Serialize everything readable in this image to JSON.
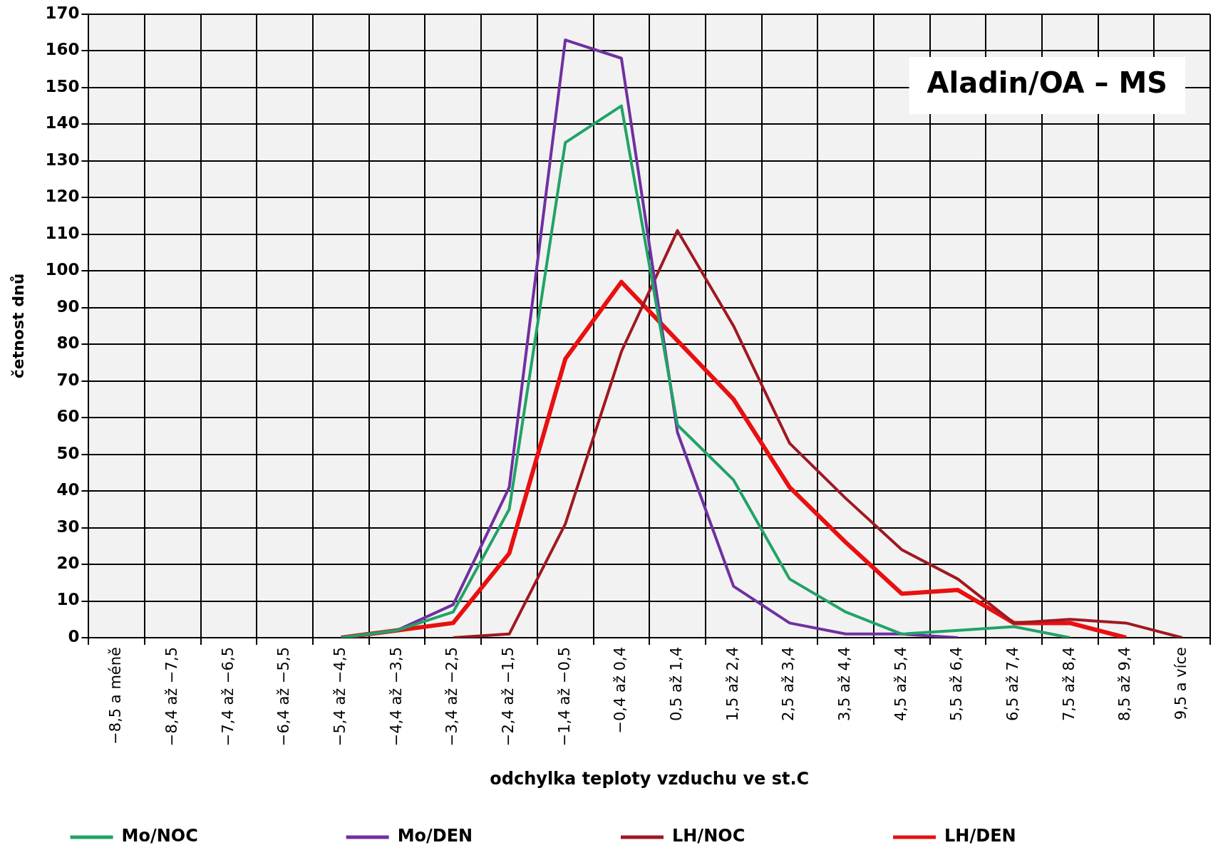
{
  "chart_data": {
    "type": "line",
    "title": "Aladin/OA – MS",
    "xlabel": "odchylka teploty vzduchu ve st.C",
    "ylabel": "četnost dnů",
    "categories": [
      "−8,5 a méně",
      "−8,4 až −7,5",
      "−7,4 až −6,5",
      "−6,4 až −5,5",
      "−5,4 až −4,5",
      "−4,4 až −3,5",
      "−3,4 až −2,5",
      "−2,4 až −1,5",
      "−1,4 až −0,5",
      "−0,4 až 0,4",
      "0,5 až 1,4",
      "1,5 až 2,4",
      "2,5 až 3,4",
      "3,5 až 4,4",
      "4,5 až 5,4",
      "5,5 až 6,4",
      "6,5 až 7,4",
      "7,5 až 8,4",
      "8,5 až 9,4",
      "9,5 a více"
    ],
    "series": [
      {
        "name": "Mo/NOC",
        "color": "#21a366",
        "values": [
          null,
          null,
          null,
          null,
          0,
          2,
          7,
          35,
          135,
          145,
          58,
          43,
          16,
          7,
          1,
          2,
          3,
          0,
          null,
          null
        ]
      },
      {
        "name": "Mo/DEN",
        "color": "#7030a0",
        "values": [
          null,
          null,
          null,
          null,
          0,
          2,
          9,
          41,
          163,
          158,
          56,
          14,
          4,
          1,
          1,
          0,
          null,
          null,
          null,
          null
        ]
      },
      {
        "name": "LH/NOC",
        "color": "#a01820",
        "values": [
          null,
          null,
          null,
          null,
          null,
          null,
          0,
          1,
          31,
          78,
          111,
          85,
          53,
          38,
          24,
          16,
          4,
          5,
          4,
          0
        ]
      },
      {
        "name": "LH/DEN",
        "color": "#e81010",
        "values": [
          null,
          null,
          null,
          null,
          0,
          2,
          4,
          23,
          76,
          97,
          81,
          65,
          41,
          26,
          12,
          13,
          4,
          4,
          0,
          null
        ]
      }
    ],
    "ylim": [
      0,
      170
    ],
    "yticks": [
      0,
      10,
      20,
      30,
      40,
      50,
      60,
      70,
      80,
      90,
      100,
      110,
      120,
      130,
      140,
      150,
      160,
      170
    ],
    "grid": true,
    "legend": "bottom",
    "marker": "none"
  }
}
